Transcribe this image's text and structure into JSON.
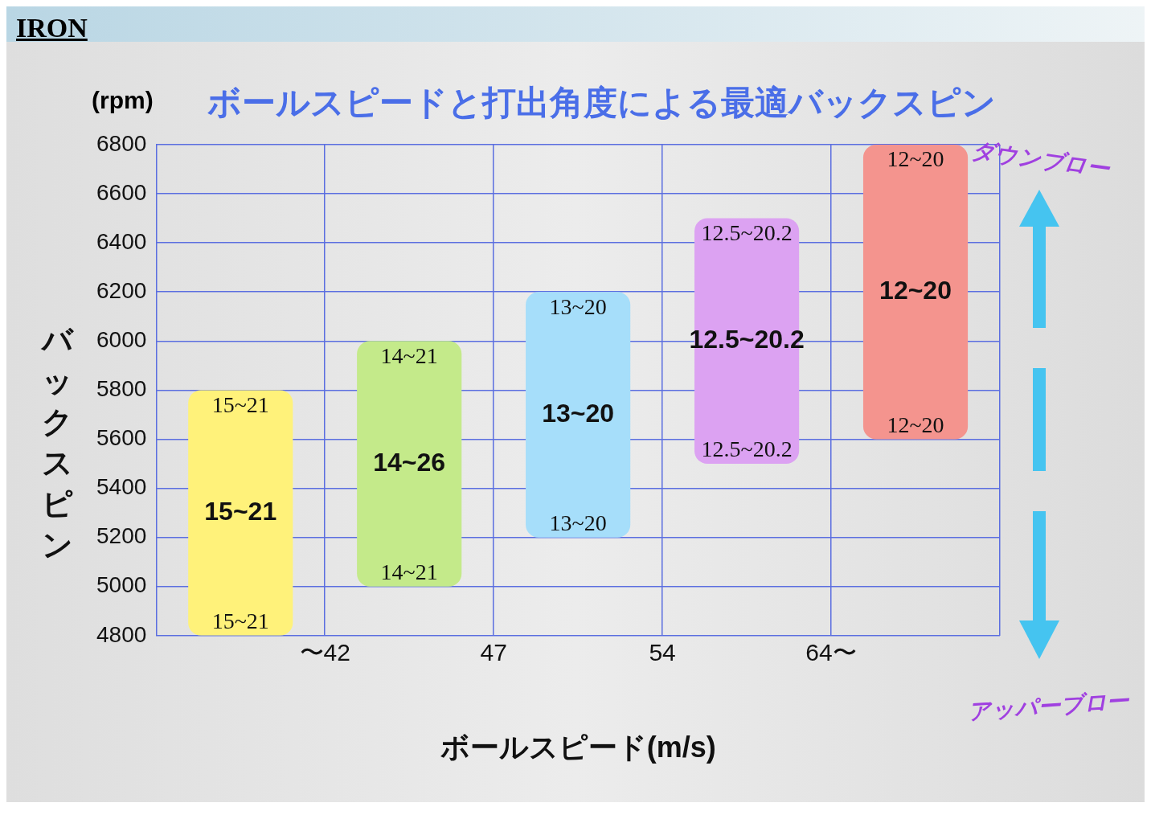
{
  "chart_data": {
    "type": "bar",
    "title": "ボールスピードと打出角度による最適バックスピン",
    "xlabel": "ボールスピード(m/s)",
    "ylabel": "バックスピン",
    "categories": [
      null,
      null,
      null,
      null,
      null
    ],
    "base": [
      4800,
      5000,
      5200,
      5500,
      5600
    ],
    "values": [
      1000,
      1000,
      1000,
      1000,
      1200
    ],
    "colors": [
      "#fff27a",
      "#c4ea8a",
      "#a6defa",
      "#dca2f2",
      "#f4948e"
    ],
    "ylim": [
      4800,
      6800
    ],
    "yticks": [
      4800,
      5000,
      5200,
      5400,
      5600,
      5800,
      6000,
      6200,
      6400,
      6600,
      6800
    ],
    "grid": true,
    "annotations": [
      "IRON",
      "(rpm)",
      "ダウンブロー",
      "アッパーブロー",
      "〜42",
      "47",
      "54",
      "64〜",
      "15~21",
      "15~21",
      "15~21",
      "14~21",
      "14~26",
      "14~21",
      "13~20",
      "13~20",
      "13~20",
      "12.5~20.2",
      "12.5~20.2",
      "12.5~20.2",
      "12~20",
      "12~20",
      "12~20"
    ]
  }
}
